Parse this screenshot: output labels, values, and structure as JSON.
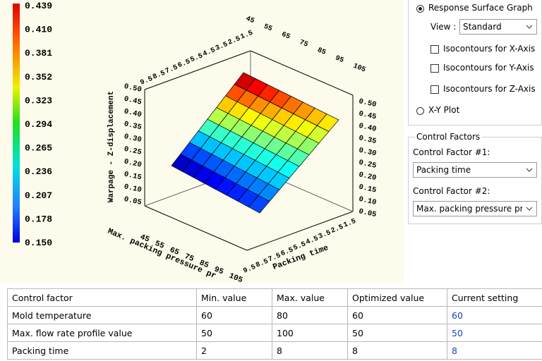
{
  "colorbar": {
    "labels": [
      "0.439",
      "0.410",
      "0.381",
      "0.352",
      "0.323",
      "0.294",
      "0.265",
      "0.236",
      "0.207",
      "0.178",
      "0.150"
    ]
  },
  "plot": {
    "z_axis_title": "Warpage - Z-displacement",
    "x_axis_title": "Max. packing pressure pr",
    "y_axis_title": "Packing time",
    "x_ticks": [
      45,
      55,
      65,
      75,
      85,
      95,
      105
    ],
    "y_ticks": [
      9.5,
      8.5,
      7.5,
      6.5,
      5.5,
      4.5,
      3.5,
      2.5,
      1.5
    ],
    "z_ticks": [
      "0.50",
      "0.45",
      "0.40",
      "0.35",
      "0.30",
      "0.25",
      "0.20",
      "0.15",
      "0.10",
      "0.05"
    ]
  },
  "panel": {
    "graph_radio": "Response Surface Graph",
    "view_label": "View :",
    "view_select": "Standard",
    "checkboxes": [
      "Isocontours for X-Axis",
      "Isocontours for Y-Axis",
      "Isocontours for Z-Axis"
    ],
    "xy_radio": "X-Y Plot",
    "group_title": "Control Factors",
    "factor1_label": "Control Factor #1:",
    "factor1_select": "Packing time",
    "factor2_label": "Control Factor #2:",
    "factor2_select": "Max. packing pressure pr"
  },
  "table": {
    "header": [
      "Control factor",
      "Min. value",
      "Max. value",
      "Optimized value",
      "Current setting"
    ],
    "rows": [
      [
        "Mold temperature",
        60,
        80,
        60,
        60
      ],
      [
        "Max. flow rate profile value",
        50,
        100,
        50,
        50
      ],
      [
        "Packing time",
        2,
        8,
        8,
        8
      ]
    ]
  }
}
